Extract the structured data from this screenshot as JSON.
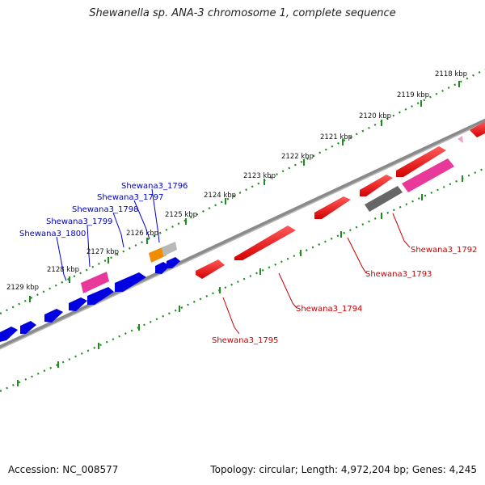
{
  "title": "Shewanella sp. ANA-3 chromosome 1, complete sequence",
  "accession": "Accession: NC_008577",
  "topology": "Topology: circular; Length: 4,972,204 bp; Genes: 4,245",
  "colors": {
    "backbone": "#7a7a7a",
    "ticks": "#1e8c1e",
    "forward_gene": "#0000e0",
    "reverse_gene": "#e00000",
    "highlight_gene": "#e8399a",
    "orange_gene": "#f08c00",
    "gray_gene": "#666666",
    "forward_label": "#0000c8",
    "reverse_label": "#c80000"
  },
  "kbp_ticks": [
    "2118 kbp",
    "2119 kbp",
    "2120 kbp",
    "2121 kbp",
    "2122 kbp",
    "2123 kbp",
    "2124 kbp",
    "2125 kbp",
    "2126 kbp",
    "2127 kbp",
    "2128 kbp",
    "2129 kbp"
  ],
  "forward_labels": [
    "Shewana3_1796",
    "Shewana3_1797",
    "Shewana3_1798",
    "Shewana3_1799",
    "Shewana3_1800"
  ],
  "reverse_labels": [
    "Shewana3_1792",
    "Shewana3_1793",
    "Shewana3_1794",
    "Shewana3_1795"
  ]
}
